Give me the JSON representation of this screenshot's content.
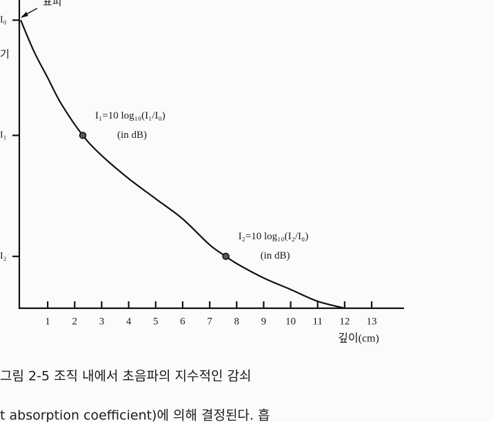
{
  "chart_data": {
    "type": "line",
    "annotation_top": "표피",
    "y_label": "기",
    "x_label": "깊이(cm)",
    "caption": "그림 2-5  조직 내에서 초음파의 지수적인 감쇠",
    "footer_text": "t absorption coefficient)에 의해 결정된다. 흡",
    "annotations": [
      {
        "lines": [
          "I₁=10 log₁₀(I₁/I₀)",
          "(in dB)"
        ],
        "x": 2.3,
        "y": 60
      },
      {
        "lines": [
          "I₂=10 log₁₀(I₂/I₀)",
          "(in dB)"
        ],
        "x": 7.6,
        "y": 18
      }
    ],
    "xlim": [
      0,
      14.2
    ],
    "ylim": [
      0,
      107
    ],
    "xticks": [
      1,
      2,
      3,
      4,
      5,
      6,
      7,
      8,
      9,
      10,
      11,
      12,
      13
    ],
    "yticks": [
      {
        "value": 100,
        "label": "I₀"
      },
      {
        "value": 60,
        "label": "I₁"
      },
      {
        "value": 18,
        "label": "I₂"
      }
    ],
    "series": [
      {
        "color": "#111111",
        "x": [
          0,
          0.5,
          1,
          1.5,
          2.3,
          3,
          4,
          5,
          6,
          7,
          7.6,
          8,
          9,
          10,
          11,
          12
        ],
        "values": [
          100,
          89,
          80,
          71,
          60,
          53,
          45,
          38,
          31,
          22,
          18,
          15.5,
          10.5,
          6.5,
          2.4,
          0
        ]
      },
      {
        "color": "#111111",
        "x": [
          2.3,
          7.6
        ],
        "values": [
          60,
          18
        ],
        "markers": true
      }
    ]
  }
}
